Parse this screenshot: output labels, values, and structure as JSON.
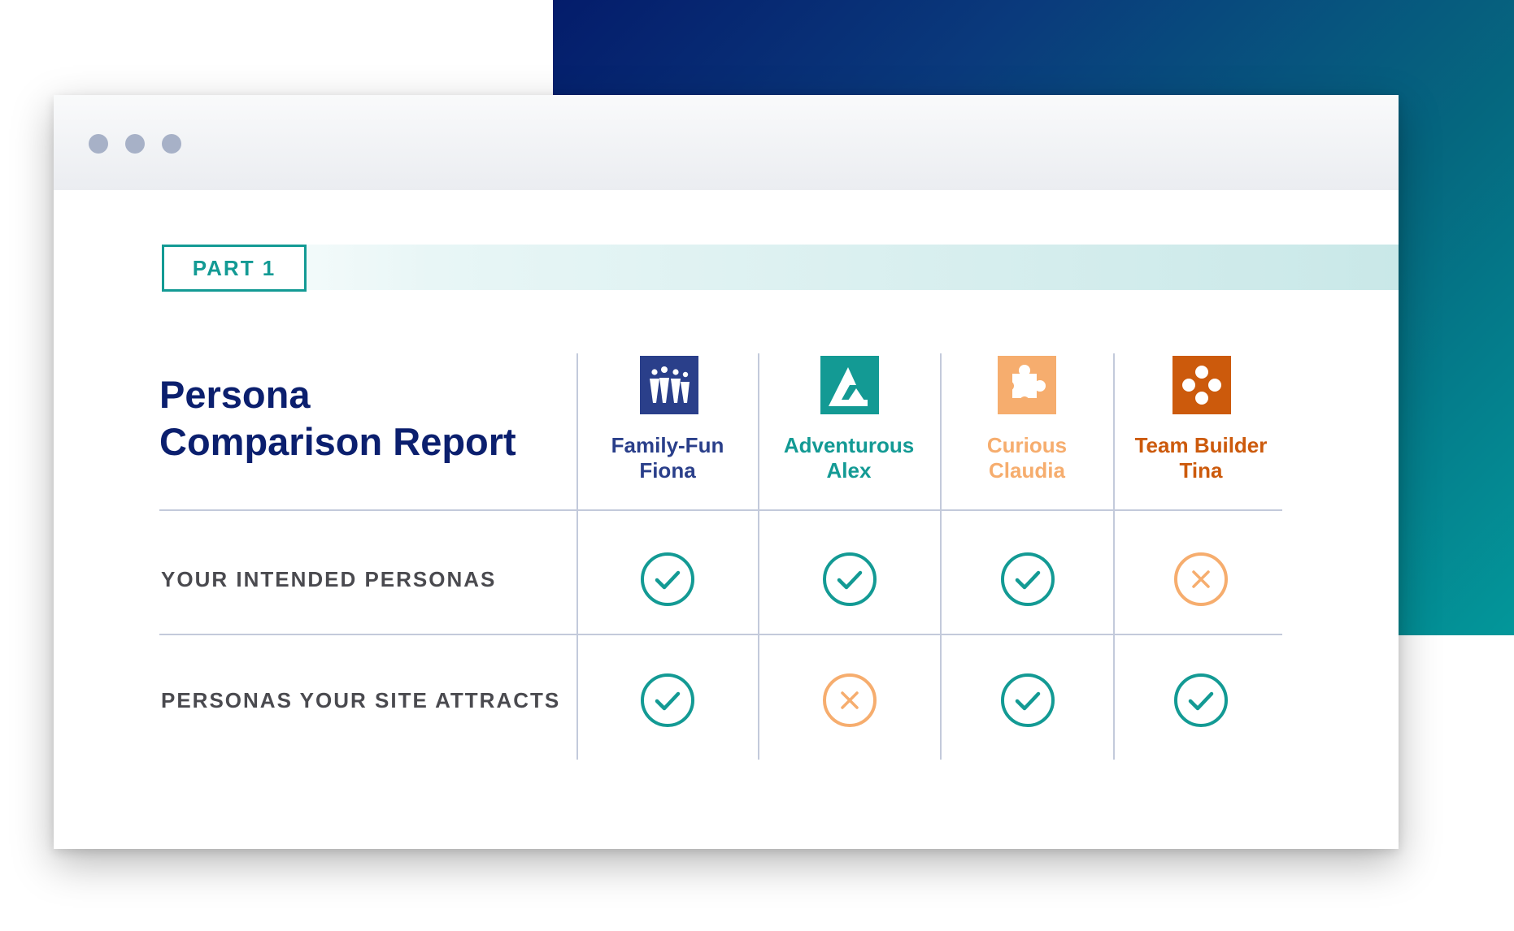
{
  "window": {
    "dots": [
      "dot",
      "dot",
      "dot"
    ]
  },
  "part_label": "PART 1",
  "report_title": {
    "line1": "Persona",
    "line2": "Comparison Report"
  },
  "personas": [
    {
      "name_line1": "Family-Fun",
      "name_line2": "Fiona",
      "color": "#2a3f8a",
      "icon": "family-icon"
    },
    {
      "name_line1": "Adventurous",
      "name_line2": "Alex",
      "color": "#139a94",
      "icon": "mountain-icon"
    },
    {
      "name_line1": "Curious",
      "name_line2": "Claudia",
      "color": "#f6ad6e",
      "icon": "puzzle-icon"
    },
    {
      "name_line1": "Team Builder",
      "name_line2": "Tina",
      "color": "#cc5a0c",
      "icon": "team-icon"
    }
  ],
  "rows": [
    {
      "label": "YOUR INTENDED PERSONAS",
      "marks": [
        "check",
        "check",
        "check",
        "cross"
      ]
    },
    {
      "label": "PERSONAS YOUR SITE ATTRACTS",
      "marks": [
        "check",
        "cross",
        "check",
        "check"
      ]
    }
  ],
  "colors": {
    "check": "#139a94",
    "cross": "#f6ad6e",
    "title": "#0b1f6e",
    "grid": "#c3cadb"
  }
}
